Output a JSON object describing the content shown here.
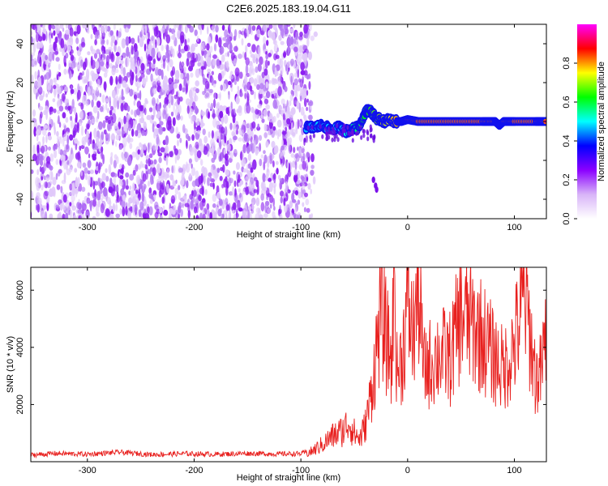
{
  "title": "C2E6.2025.183.19.04.G11",
  "chart_data": [
    {
      "type": "heatmap",
      "title": "C2E6.2025.183.19.04.G11",
      "xlabel": "Height of straight line (km)",
      "ylabel": "Frequency (Hz)",
      "xlim": [
        -353,
        130
      ],
      "ylim": [
        -50,
        50
      ],
      "xticks": [
        -300,
        -200,
        -100,
        0,
        100
      ],
      "xtick_labels": [
        "-300",
        "-200",
        "-100",
        "0",
        "100"
      ],
      "yticks": [
        -40,
        -20,
        0,
        20,
        40
      ],
      "ytick_labels": [
        "-40",
        "-20",
        "0",
        "20",
        "40"
      ],
      "grid": false,
      "noise_region": {
        "x_range": [
          -353,
          -93
        ],
        "description_amplitude": [
          0.0,
          0.3
        ]
      },
      "signal_track": {
        "x": [
          -95,
          -88,
          -80,
          -72,
          -64,
          -58,
          -52,
          -46,
          -42,
          -38,
          -34,
          -30,
          -26,
          -22,
          -18,
          -12,
          -6,
          0,
          10,
          30,
          50,
          70,
          82,
          86,
          90,
          100,
          120,
          130
        ],
        "frequency": [
          -3,
          -3,
          -2,
          -4,
          -3,
          -5,
          -4,
          -3,
          2,
          6,
          5,
          2,
          1,
          0,
          1,
          0,
          0,
          1,
          0,
          0,
          0,
          0,
          0,
          -2,
          0,
          0,
          0,
          0
        ],
        "amplitude": [
          0.3,
          0.35,
          0.3,
          0.35,
          0.3,
          0.4,
          0.45,
          0.5,
          0.55,
          0.6,
          0.65,
          0.7,
          0.75,
          0.8,
          0.8,
          0.85,
          0.9,
          0.95,
          0.95,
          0.95,
          0.95,
          0.95,
          0.95,
          0.9,
          0.95,
          0.95,
          0.95,
          0.95
        ]
      },
      "colorbar": {
        "label": "Normalized spectral amplitude",
        "range": [
          0,
          1
        ],
        "ticks": [
          0.0,
          0.2,
          0.4,
          0.6,
          0.8
        ],
        "tick_labels": [
          "0.0",
          "0.2",
          "0.4",
          "0.6",
          "0.8"
        ],
        "colormap": [
          "#ffffff",
          "#d8b4f8",
          "#8b00ff",
          "#0000ff",
          "#00ffff",
          "#00ff00",
          "#ffff00",
          "#ff0000",
          "#ff00ff"
        ]
      }
    },
    {
      "type": "line",
      "xlabel": "Height of straight line (km)",
      "ylabel": "SNR (10 * v/v)",
      "xlim": [
        -353,
        130
      ],
      "ylim": [
        0,
        6800
      ],
      "xticks": [
        -300,
        -200,
        -100,
        0,
        100
      ],
      "xtick_labels": [
        "-300",
        "-200",
        "-100",
        "0",
        "100"
      ],
      "yticks": [
        2000,
        4000,
        6000
      ],
      "ytick_labels": [
        "2000",
        "4000",
        "6000"
      ],
      "grid": false,
      "line_color": "#e8201e",
      "series": [
        {
          "x": [
            -353,
            -330,
            -300,
            -270,
            -240,
            -210,
            -180,
            -150,
            -120,
            -100,
            -90,
            -80,
            -70,
            -60,
            -55,
            -50,
            -45,
            -40,
            -35,
            -30,
            -25,
            -20,
            -15,
            -12,
            -10,
            -5,
            0,
            5,
            10,
            15,
            20,
            30,
            40,
            50,
            60,
            70,
            80,
            90,
            100,
            110,
            120,
            125,
            130
          ],
          "values": [
            200,
            260,
            230,
            300,
            220,
            250,
            230,
            260,
            240,
            250,
            350,
            600,
            900,
            1100,
            1400,
            1000,
            800,
            1200,
            2200,
            3600,
            5400,
            4300,
            3500,
            6700,
            3100,
            3700,
            5600,
            4300,
            6200,
            3200,
            3400,
            3800,
            3600,
            5200,
            4800,
            4400,
            3700,
            3200,
            4100,
            5800,
            2900,
            3100,
            4500
          ]
        }
      ]
    }
  ]
}
